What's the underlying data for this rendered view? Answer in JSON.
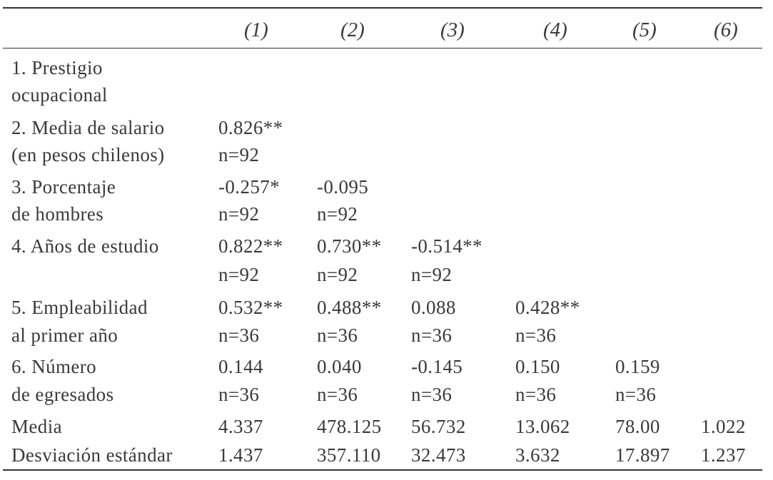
{
  "columns": [
    "(1)",
    "(2)",
    "(3)",
    "(4)",
    "(5)",
    "(6)"
  ],
  "rows": [
    {
      "label_lines": [
        "1. Prestigio",
        "ocupacional"
      ],
      "cells": []
    },
    {
      "label_lines": [
        "2. Media de salario",
        "(en pesos chilenos)"
      ],
      "cells": [
        [
          "0.826**",
          "n=92"
        ]
      ]
    },
    {
      "label_lines": [
        "3. Porcentaje",
        "de hombres"
      ],
      "cells": [
        [
          "-0.257*",
          "n=92"
        ],
        [
          "-0.095",
          "n=92"
        ]
      ]
    },
    {
      "label_lines": [
        "4. Años de estudio",
        ""
      ],
      "cells": [
        [
          "0.822**",
          "n=92"
        ],
        [
          "0.730**",
          "n=92"
        ],
        [
          "-0.514**",
          "n=92"
        ]
      ]
    },
    {
      "label_lines": [
        "5. Empleabilidad",
        "al primer año"
      ],
      "cells": [
        [
          "0.532**",
          "n=36"
        ],
        [
          "0.488**",
          "n=36"
        ],
        [
          "0.088",
          "n=36"
        ],
        [
          "0.428**",
          "n=36"
        ]
      ]
    },
    {
      "label_lines": [
        "6. Número",
        "de egresados"
      ],
      "cells": [
        [
          "0.144",
          "n=36"
        ],
        [
          "0.040",
          "n=36"
        ],
        [
          "-0.145",
          "n=36"
        ],
        [
          "0.150",
          "n=36"
        ],
        [
          "0.159",
          "n=36"
        ]
      ]
    }
  ],
  "summary": [
    {
      "label": "Media",
      "values": [
        "4.337",
        "478.125",
        "56.732",
        "13.062",
        "78.00",
        "1.022"
      ]
    },
    {
      "label": "Desviación estándar",
      "values": [
        "1.437",
        "357.110",
        "32.473",
        "3.632",
        "17.897",
        "1.237"
      ]
    }
  ]
}
